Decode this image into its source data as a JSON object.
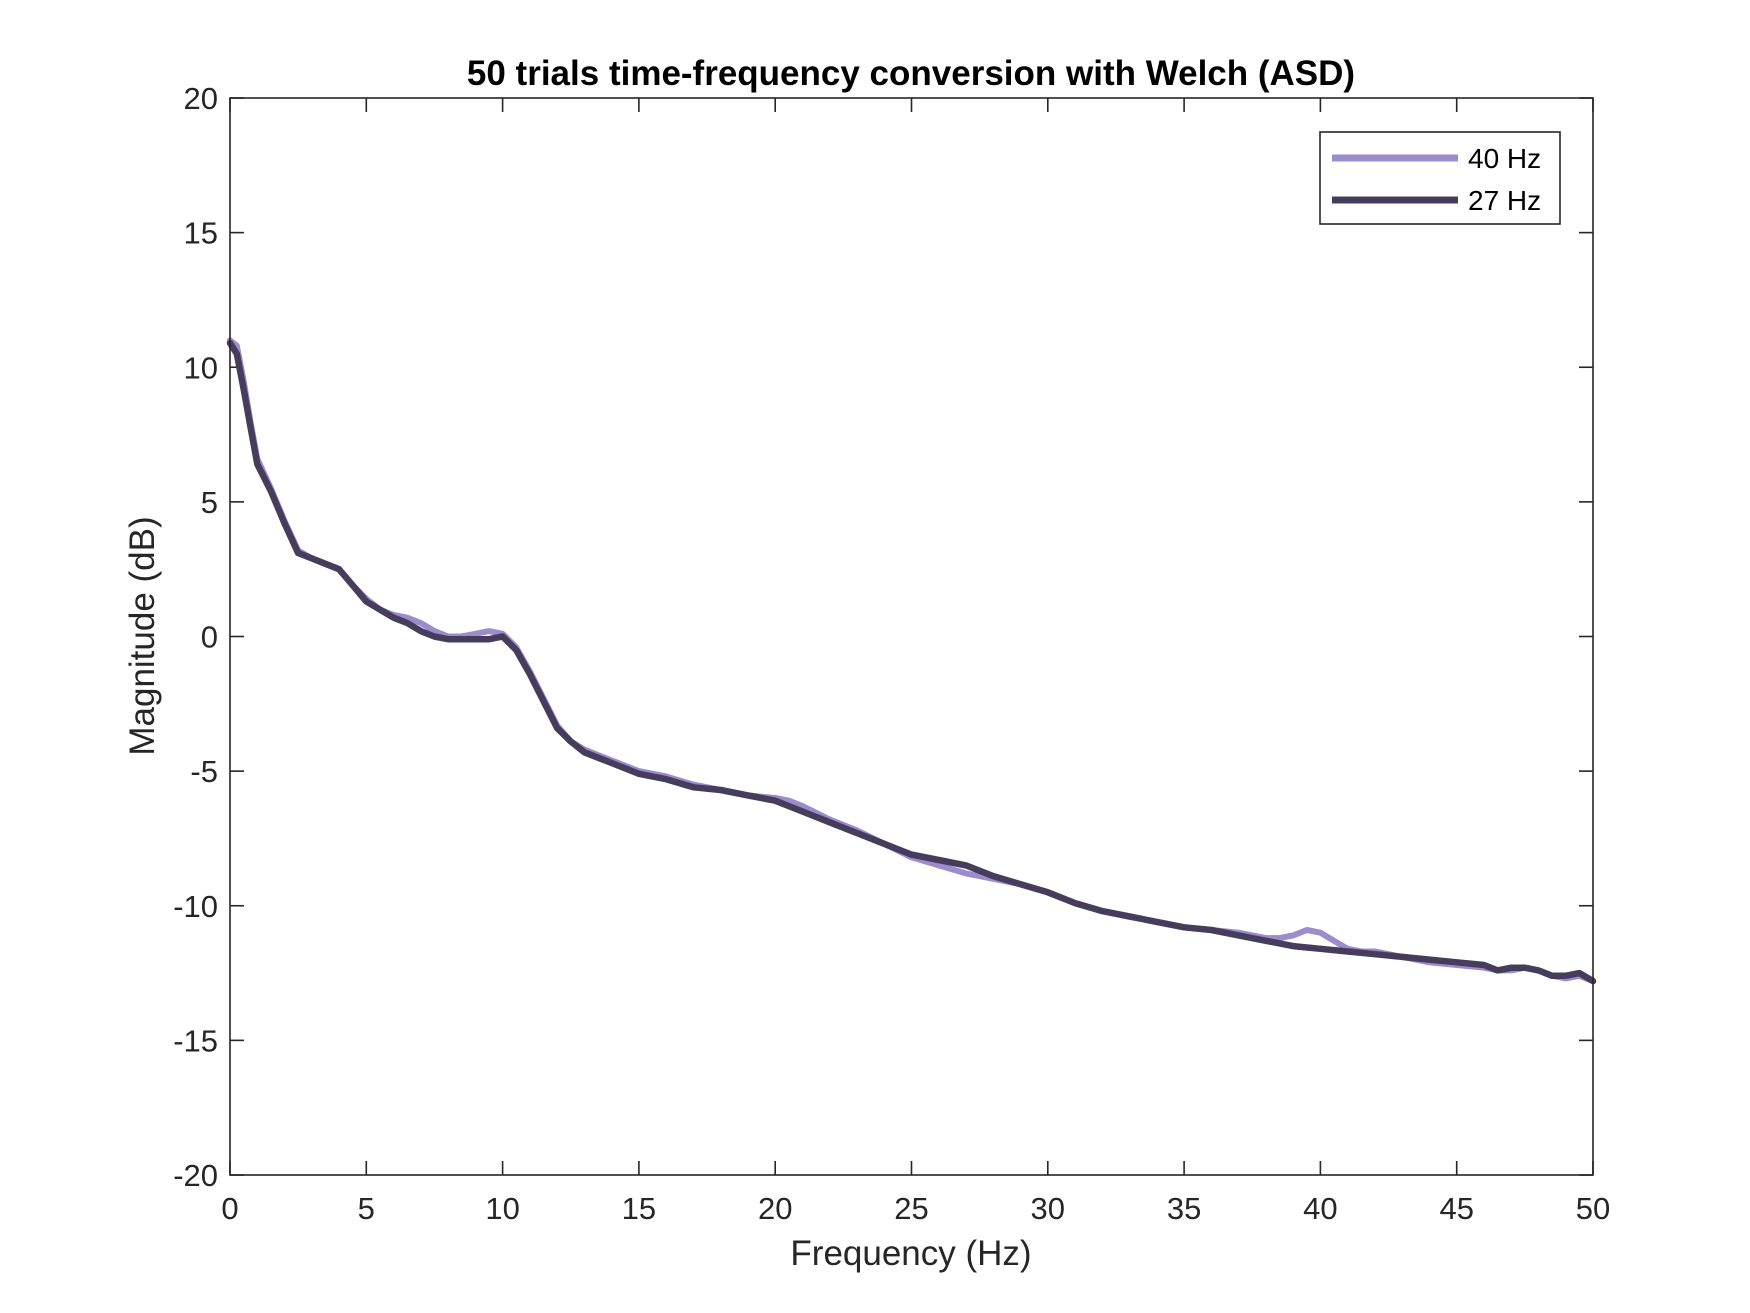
{
  "chart_data": {
    "type": "line",
    "title": "50 trials time-frequency conversion with Welch (ASD)",
    "xlabel": "Frequency (Hz)",
    "ylabel": "Magnitude (dB)",
    "xlim": [
      0,
      50
    ],
    "ylim": [
      -20,
      20
    ],
    "xticks": [
      0,
      5,
      10,
      15,
      20,
      25,
      30,
      35,
      40,
      45,
      50
    ],
    "yticks": [
      -20,
      -15,
      -10,
      -5,
      0,
      5,
      10,
      15,
      20
    ],
    "xtick_labels": [
      "0",
      "5",
      "10",
      "15",
      "20",
      "25",
      "30",
      "35",
      "40",
      "45",
      "50"
    ],
    "ytick_labels": [
      "-20",
      "-15",
      "-10",
      "-5",
      "0",
      "5",
      "10",
      "15",
      "20"
    ],
    "grid": false,
    "legend_position": "top-right",
    "series": [
      {
        "name": "40 Hz",
        "color": "#9b8ccc",
        "x": [
          0,
          0.25,
          0.5,
          0.75,
          1,
          1.5,
          2,
          2.5,
          3,
          3.5,
          4,
          4.5,
          5,
          5.5,
          6,
          6.5,
          7,
          7.5,
          8,
          8.5,
          9,
          9.5,
          10,
          10.5,
          11,
          11.5,
          12,
          12.5,
          13,
          13.5,
          14,
          15,
          16,
          17,
          18,
          19,
          20,
          20.5,
          21,
          22,
          23,
          24,
          25,
          26,
          27,
          28,
          29,
          30,
          31,
          32,
          33,
          34,
          35,
          36,
          37,
          38,
          38.5,
          39,
          39.5,
          40,
          40.5,
          41,
          41.5,
          42,
          43,
          44,
          45,
          46,
          46.5,
          47,
          47.5,
          48,
          48.5,
          49,
          49.5,
          50
        ],
        "y": [
          11,
          10.8,
          9.5,
          8,
          6.6,
          5.5,
          4.3,
          3.2,
          2.9,
          2.7,
          2.5,
          1.9,
          1.4,
          1.0,
          0.8,
          0.7,
          0.5,
          0.2,
          0.0,
          0.0,
          0.1,
          0.2,
          0.1,
          -0.4,
          -1.3,
          -2.3,
          -3.3,
          -3.9,
          -4.2,
          -4.4,
          -4.6,
          -5.0,
          -5.2,
          -5.5,
          -5.7,
          -5.9,
          -6.0,
          -6.1,
          -6.3,
          -6.8,
          -7.2,
          -7.7,
          -8.2,
          -8.5,
          -8.8,
          -9.0,
          -9.2,
          -9.5,
          -9.9,
          -10.2,
          -10.4,
          -10.6,
          -10.8,
          -10.9,
          -11.0,
          -11.2,
          -11.2,
          -11.1,
          -10.9,
          -11.0,
          -11.3,
          -11.6,
          -11.7,
          -11.7,
          -11.9,
          -12.1,
          -12.2,
          -12.3,
          -12.4,
          -12.4,
          -12.3,
          -12.4,
          -12.6,
          -12.7,
          -12.6,
          -12.8
        ]
      },
      {
        "name": "27 Hz",
        "color": "#463d5d",
        "x": [
          0,
          0.25,
          0.5,
          0.75,
          1,
          1.5,
          2,
          2.5,
          3,
          3.5,
          4,
          4.5,
          5,
          5.5,
          6,
          6.5,
          7,
          7.5,
          8,
          8.5,
          9,
          9.5,
          10,
          10.5,
          11,
          11.5,
          12,
          12.5,
          13,
          13.5,
          14,
          15,
          16,
          17,
          18,
          19,
          20,
          20.5,
          21,
          22,
          23,
          24,
          25,
          26,
          27,
          28,
          29,
          30,
          31,
          32,
          33,
          34,
          35,
          36,
          37,
          38,
          39,
          40,
          41,
          42,
          43,
          44,
          45,
          46,
          46.5,
          47,
          47.5,
          48,
          48.5,
          49,
          49.5,
          50
        ],
        "y": [
          10.9,
          10.5,
          9.2,
          7.8,
          6.4,
          5.4,
          4.2,
          3.1,
          2.9,
          2.7,
          2.5,
          1.9,
          1.3,
          1.0,
          0.7,
          0.5,
          0.2,
          0.0,
          -0.1,
          -0.1,
          -0.1,
          -0.1,
          0.0,
          -0.5,
          -1.4,
          -2.4,
          -3.4,
          -3.9,
          -4.3,
          -4.5,
          -4.7,
          -5.1,
          -5.3,
          -5.6,
          -5.7,
          -5.9,
          -6.1,
          -6.3,
          -6.5,
          -6.9,
          -7.3,
          -7.7,
          -8.1,
          -8.3,
          -8.5,
          -8.9,
          -9.2,
          -9.5,
          -9.9,
          -10.2,
          -10.4,
          -10.6,
          -10.8,
          -10.9,
          -11.1,
          -11.3,
          -11.5,
          -11.6,
          -11.7,
          -11.8,
          -11.9,
          -12.0,
          -12.1,
          -12.2,
          -12.4,
          -12.3,
          -12.3,
          -12.4,
          -12.6,
          -12.6,
          -12.5,
          -12.8
        ]
      }
    ]
  }
}
